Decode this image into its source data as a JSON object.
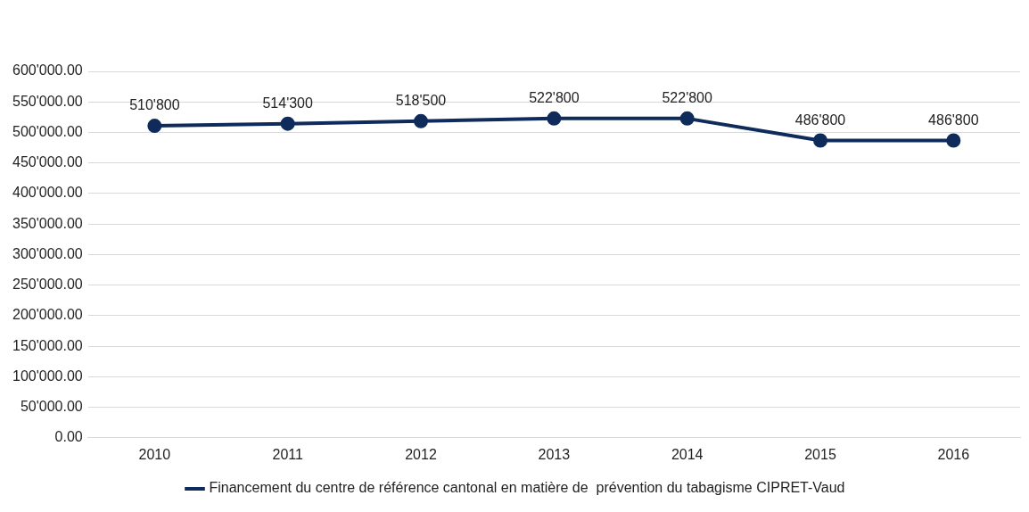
{
  "chart_data": {
    "type": "line",
    "categories": [
      "2010",
      "2011",
      "2012",
      "2013",
      "2014",
      "2015",
      "2016"
    ],
    "series": [
      {
        "name": "Financement du centre de référence cantonal en matière de  prévention du tabagisme CIPRET-Vaud",
        "color": "#0f2b5b",
        "values": [
          510800,
          514300,
          518500,
          522800,
          522800,
          486800,
          486800
        ],
        "value_labels": [
          "510'800",
          "514'300",
          "518'500",
          "522'800",
          "522'800",
          "486'800",
          "486'800"
        ]
      }
    ],
    "ylim": [
      0,
      600000
    ],
    "yticks": [
      {
        "value": 0,
        "label": "0.00"
      },
      {
        "value": 50000,
        "label": "50'000.00"
      },
      {
        "value": 100000,
        "label": "100'000.00"
      },
      {
        "value": 150000,
        "label": "150'000.00"
      },
      {
        "value": 200000,
        "label": "200'000.00"
      },
      {
        "value": 250000,
        "label": "250'000.00"
      },
      {
        "value": 300000,
        "label": "300'000.00"
      },
      {
        "value": 350000,
        "label": "350'000.00"
      },
      {
        "value": 400000,
        "label": "400'000.00"
      },
      {
        "value": 450000,
        "label": "450'000.00"
      },
      {
        "value": 500000,
        "label": "500'000.00"
      },
      {
        "value": 550000,
        "label": "550'000.00"
      },
      {
        "value": 600000,
        "label": "600'000.00"
      }
    ],
    "grid": "y",
    "legend": "bottom",
    "marker": "circle",
    "line_style": "solid"
  }
}
